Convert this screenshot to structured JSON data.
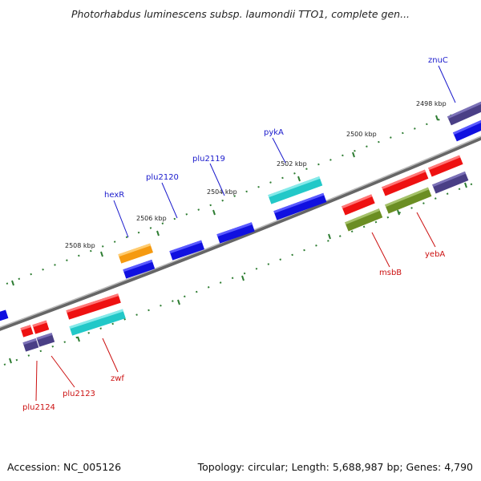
{
  "title": "Photorhabdus luminescens subsp. laumondii TTO1, complete gen...",
  "footer": {
    "accession": "Accession: NC_005126",
    "summary": "Topology: circular; Length: 5,688,987 bp; Genes: 4,790"
  },
  "colors": {
    "background": "#ffffff",
    "backbone": "#888888",
    "tick": "#2e7d32",
    "forward_label": "#1a1acc",
    "reverse_label": "#cc1111",
    "cds_blue": "#1010e0",
    "cds_cyan": "#22c8c8",
    "cds_orange": "#f59a10",
    "cds_purple": "#4a3f86",
    "cds_red": "#ee1111",
    "cds_olive": "#6b8e23"
  },
  "kbp_labels": [
    "2498 kbp",
    "2500 kbp",
    "2502 kbp",
    "2504 kbp",
    "2506 kbp",
    "2508 kbp"
  ],
  "forward_gene_labels": [
    "znuC",
    "pykA",
    "plu2119",
    "plu2120",
    "hexR"
  ],
  "reverse_gene_labels": [
    "msbB",
    "yebA",
    "zwf",
    "plu2123",
    "plu2124"
  ]
}
